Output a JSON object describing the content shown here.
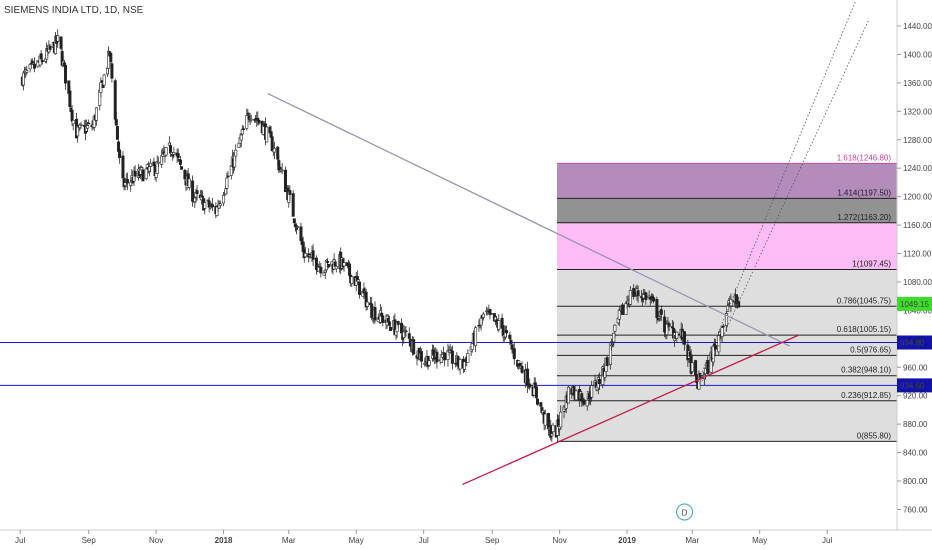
{
  "chart_data": {
    "type": "candlestick",
    "title": "SIEMENS INDIA LTD, 1D, NSE",
    "ylim": [
      740,
      1460
    ],
    "y_ticks": [
      760,
      800,
      840,
      880,
      920,
      960,
      1000,
      1040,
      1080,
      1120,
      1160,
      1200,
      1240,
      1280,
      1320,
      1360,
      1400,
      1440
    ],
    "y_tick_labels": [
      "760.00",
      "800.00",
      "840.00",
      "880.00",
      "920.00",
      "960.00",
      "1000.00",
      "1040.00",
      "1080.00",
      "1120.00",
      "1160.00",
      "1200.00",
      "1240.00",
      "1280.00",
      "1320.00",
      "1360.00",
      "1400.00",
      "1440.00"
    ],
    "x_tick_labels": [
      "Jul",
      "Sep",
      "Nov",
      "2018",
      "Mar",
      "May",
      "Jul",
      "Sep",
      "Nov",
      "2019",
      "Mar",
      "May",
      "Jul"
    ],
    "x_tick_bold": [
      "2018",
      "2019"
    ],
    "price_path": [
      [
        "2017-07-01",
        1365
      ],
      [
        "2017-07-20",
        1390
      ],
      [
        "2017-08-05",
        1420
      ],
      [
        "2017-08-20",
        1290
      ],
      [
        "2017-09-05",
        1300
      ],
      [
        "2017-09-12",
        1350
      ],
      [
        "2017-09-20",
        1400
      ],
      [
        "2017-10-01",
        1215
      ],
      [
        "2017-10-15",
        1230
      ],
      [
        "2017-11-01",
        1240
      ],
      [
        "2017-11-15",
        1270
      ],
      [
        "2017-12-05",
        1200
      ],
      [
        "2017-12-25",
        1180
      ],
      [
        "2018-01-10",
        1250
      ],
      [
        "2018-01-25",
        1320
      ],
      [
        "2018-02-05",
        1300
      ],
      [
        "2018-02-15",
        1270
      ],
      [
        "2018-03-01",
        1200
      ],
      [
        "2018-03-15",
        1120
      ],
      [
        "2018-04-01",
        1100
      ],
      [
        "2018-04-15",
        1110
      ],
      [
        "2018-05-01",
        1080
      ],
      [
        "2018-05-15",
        1040
      ],
      [
        "2018-06-01",
        1020
      ],
      [
        "2018-06-15",
        1005
      ],
      [
        "2018-07-01",
        970
      ],
      [
        "2018-07-20",
        980
      ],
      [
        "2018-08-05",
        960
      ],
      [
        "2018-08-25",
        1035
      ],
      [
        "2018-09-10",
        1015
      ],
      [
        "2018-09-25",
        965
      ],
      [
        "2018-10-10",
        925
      ],
      [
        "2018-10-22",
        870
      ],
      [
        "2018-10-29",
        870
      ],
      [
        "2018-11-10",
        930
      ],
      [
        "2018-11-25",
        915
      ],
      [
        "2018-12-10",
        950
      ],
      [
        "2018-12-25",
        1030
      ],
      [
        "2019-01-05",
        1065
      ],
      [
        "2019-01-20",
        1060
      ],
      [
        "2019-02-05",
        1015
      ],
      [
        "2019-02-20",
        1005
      ],
      [
        "2019-03-05",
        935
      ],
      [
        "2019-03-15",
        960
      ],
      [
        "2019-03-25",
        1005
      ],
      [
        "2019-04-05",
        1055
      ],
      [
        "2019-04-12",
        1049
      ]
    ],
    "fib_levels": [
      {
        "ratio": 0,
        "value": 855.8,
        "label": "0(855.80)"
      },
      {
        "ratio": 0.236,
        "value": 912.85,
        "label": "0.236(912.85)"
      },
      {
        "ratio": 0.382,
        "value": 948.1,
        "label": "0.382(948.10)"
      },
      {
        "ratio": 0.5,
        "value": 976.65,
        "label": "0.5(976.65)"
      },
      {
        "ratio": 0.618,
        "value": 1005.15,
        "label": "0.618(1005.15)"
      },
      {
        "ratio": 0.786,
        "value": 1045.75,
        "label": "0.786(1045.75)"
      },
      {
        "ratio": 1,
        "value": 1097.45,
        "label": "1(1097.45)"
      },
      {
        "ratio": 1.272,
        "value": 1163.2,
        "label": "1.272(1163.20)"
      },
      {
        "ratio": 1.414,
        "value": 1197.5,
        "label": "1.414(1197.50)"
      },
      {
        "ratio": 1.618,
        "value": 1246.8,
        "label": "1.618(1246.80)"
      }
    ],
    "horizontal_lines": [
      {
        "value": 994.8,
        "label": "994.80",
        "color": "#1a1acc"
      },
      {
        "value": 934.5,
        "label": "934.50",
        "color": "#1a1acc"
      }
    ],
    "trendlines": [
      {
        "name": "downtrend",
        "from": [
          "2018-02-10",
          1345
        ],
        "to": [
          "2019-05-28",
          990
        ],
        "color": "#9a92b0"
      },
      {
        "name": "uptrend",
        "from": [
          "2018-08-05",
          795
        ],
        "to": [
          "2019-06-05",
          1005
        ],
        "color": "#c41a4a"
      }
    ],
    "channel_lines": [
      {
        "from": [
          "2019-03-05",
          935
        ],
        "to": [
          "2019-07-28",
          1480
        ]
      },
      {
        "from": [
          "2019-03-10",
          940
        ],
        "to": [
          "2019-08-08",
          1450
        ]
      }
    ],
    "last_price": {
      "value": 1049.15,
      "label": "1049.15",
      "color": "#3ddc2a"
    },
    "event_marker": {
      "label": "D",
      "date": "2019-02-22"
    }
  }
}
